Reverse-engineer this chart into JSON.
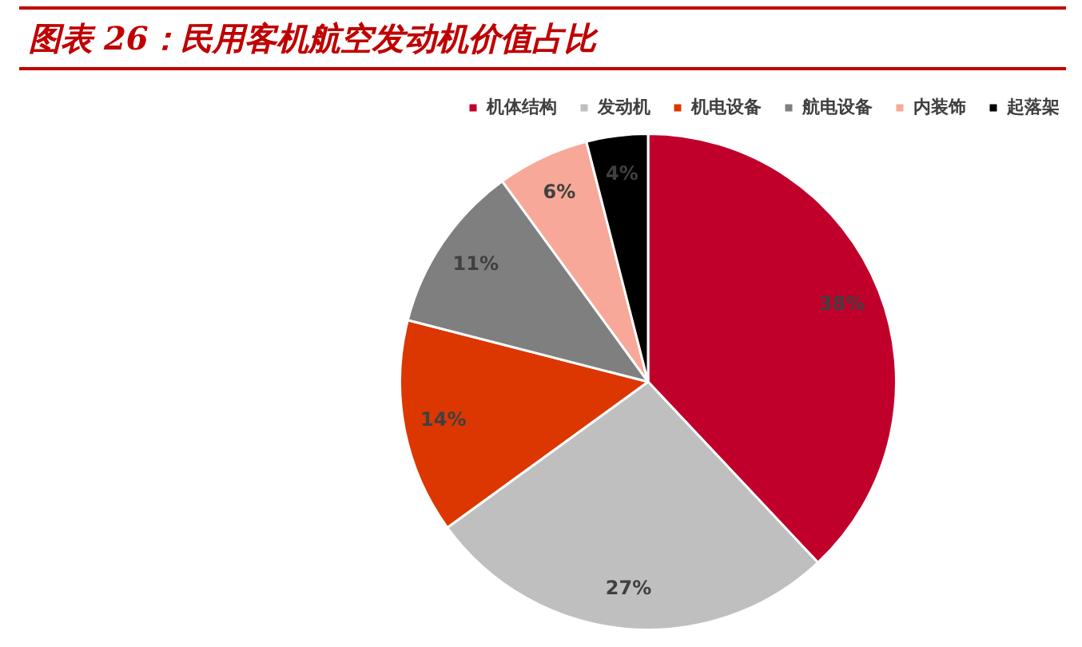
{
  "chart_data": {
    "type": "pie",
    "title": "图表 26：民用客机航空发动机价值占比",
    "categories": [
      "机体结构",
      "发动机",
      "机电设备",
      "航电设备",
      "内装饰",
      "起落架"
    ],
    "values": [
      38,
      27,
      14,
      11,
      6,
      4
    ],
    "colors": [
      "#c0002b",
      "#bfbfbf",
      "#dc3700",
      "#7f7f7f",
      "#f7a898",
      "#000000"
    ],
    "value_labels": [
      "38%",
      "27%",
      "14%",
      "11%",
      "6%",
      "4%"
    ],
    "legend": "top right"
  }
}
